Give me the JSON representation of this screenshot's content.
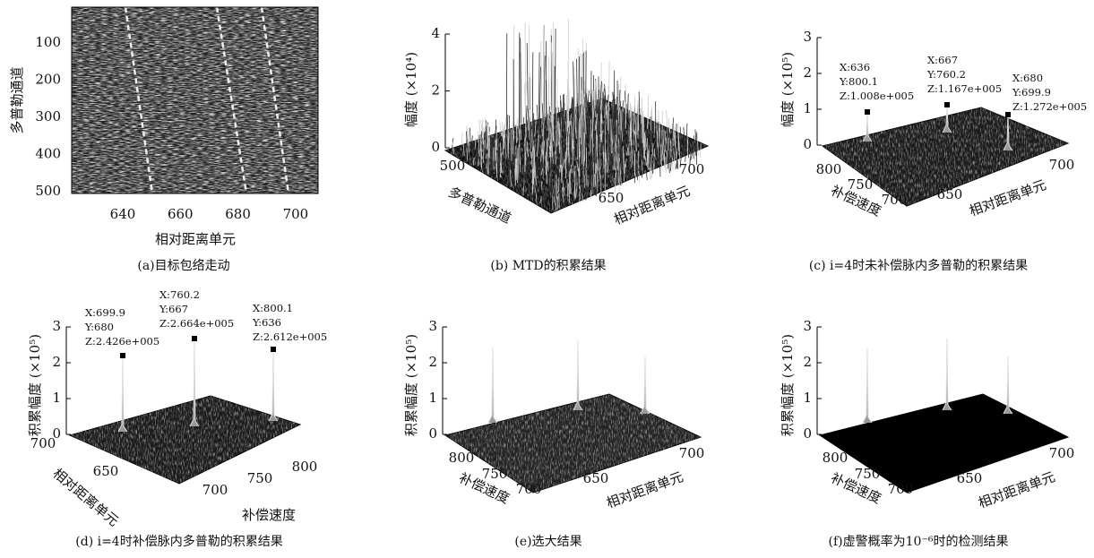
{
  "panels": [
    {
      "caption": "(a)目标包络走动",
      "x_label": "相对距离单元",
      "y_label": "多普勒通道",
      "x_ticks": [
        "640",
        "660",
        "680",
        "700"
      ],
      "y_ticks": [
        "100",
        "200",
        "300",
        "400",
        "500"
      ]
    },
    {
      "caption": "(b) MTD的积累结果",
      "z_label": "幅度 (×10⁴)",
      "left_label": "多普勒通道",
      "right_label": "相对距离单元",
      "z_ticks": [
        "0",
        "2",
        "4"
      ],
      "left_ticks": [
        "500",
        "0"
      ],
      "right_ticks": [
        "650",
        "700"
      ],
      "annotations": []
    },
    {
      "caption": "(c) i=4时未补偿脉内多普勒的积累结果",
      "z_label": "幅度 (×10⁵)",
      "left_label": "补偿速度",
      "right_label": "相对距离单元",
      "z_ticks": [
        "0",
        "1",
        "2",
        "3"
      ],
      "left_ticks": [
        "800",
        "750",
        "700"
      ],
      "right_ticks": [
        "650",
        "700"
      ],
      "annotations": [
        [
          "X:636",
          "Y:800.1",
          "Z:1.008e+005"
        ],
        [
          "X:667",
          "Y:760.2",
          "Z:1.167e+005"
        ],
        [
          "X:680",
          "Y:699.9",
          "Z:1.272e+005"
        ]
      ]
    },
    {
      "caption": "(d) i=4时补偿脉内多普勒的积累结果",
      "z_label": "积累幅度 (×10⁵)",
      "left_label": "相对距离单元",
      "right_label": "补偿速度",
      "z_ticks": [
        "0",
        "1",
        "2",
        "3"
      ],
      "left_ticks": [
        "700",
        "650"
      ],
      "right_ticks": [
        "700",
        "750",
        "800"
      ],
      "annotations": [
        [
          "X:699.9",
          "Y:680",
          "Z:2.426e+005"
        ],
        [
          "X:760.2",
          "Y:667",
          "Z:2.664e+005"
        ],
        [
          "X:800.1",
          "Y:636",
          "Z:2.612e+005"
        ]
      ]
    },
    {
      "caption": "(e)选大结果",
      "z_label": "积累幅度 (×10⁵)",
      "left_label": "补偿速度",
      "right_label": "相对距离单元",
      "z_ticks": [
        "0",
        "1",
        "2",
        "3"
      ],
      "left_ticks": [
        "800",
        "750",
        "700"
      ],
      "right_ticks": [
        "650",
        "700"
      ],
      "annotations": []
    },
    {
      "caption": "(f)虚警概率为10⁻⁶时的检测结果",
      "z_label": "积累幅度 (×10⁵)",
      "left_label": "补偿速度",
      "right_label": "相对距离单元",
      "z_ticks": [
        "0",
        "1",
        "2",
        "3"
      ],
      "left_ticks": [
        "800",
        "750",
        "700"
      ],
      "right_ticks": [
        "650",
        "700"
      ],
      "annotations": []
    }
  ]
}
